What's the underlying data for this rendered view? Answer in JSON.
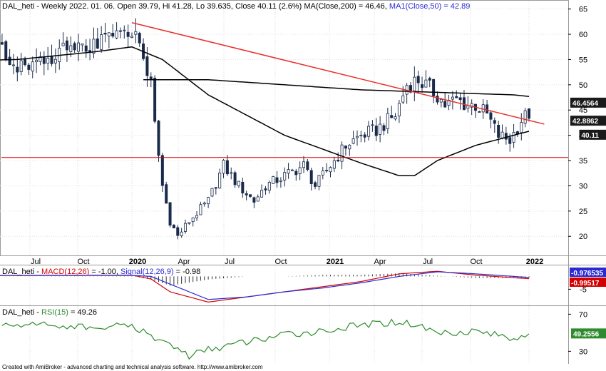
{
  "title": {
    "symbol": "DAL_heti - Weekly 2022. 01. 06.",
    "ohlc": " Open 39.79, Hi 41.28, Lo 39.635, Close 40.11 (2.6%)",
    "ma200": " MA(Close,200) = 46.46,",
    "ma50": " MA1(Close,50) = 42.89"
  },
  "macd_title": {
    "symbol": "DAL_heti - ",
    "macd": "MACD(12,26)",
    "macd_val": " = -1.00, ",
    "signal": "Signal(12,26,9)",
    "signal_val": " = -0.98"
  },
  "rsi_title": {
    "symbol": "DAL_heti - ",
    "rsi": "RSI(15)",
    "rsi_val": " = 49.26"
  },
  "footer": "Created with AmiBroker - advanced charting and technical analysis software. http://www.amibroker.com",
  "colors": {
    "trendline": "#e8302a",
    "support": "#d40000",
    "ma": "#000000",
    "macd": "#d40000",
    "signal": "#2a2ad4",
    "rsi": "#2e8b2e",
    "rsi_tag": "#2e8b2e",
    "macd_tag": "#2a2ad4",
    "signal_tag": "#d40000"
  },
  "chart_data": [
    {
      "type": "candlestick",
      "title": "DAL_heti - Weekly 2022. 01. 06.",
      "y_ticks": [
        20,
        25,
        30,
        35,
        40,
        45,
        50,
        55,
        60,
        65
      ],
      "ylim": [
        16.5,
        66.5
      ],
      "x_labels": [
        "Jul",
        "Oct",
        "2020",
        "Apr",
        "Jul",
        "Oct",
        "2021",
        "Apr",
        "Jul",
        "Oct",
        "2022"
      ],
      "bold_x_labels": [
        "2020",
        "2021",
        "2022"
      ],
      "value_tags": [
        {
          "label": "46.4564",
          "value": 46.46
        },
        {
          "label": "42.8862",
          "value": 42.89
        },
        {
          "label": "40.11",
          "value": 40.11
        }
      ],
      "support_level": 35.6,
      "trendline": {
        "from": {
          "week": 0,
          "value": 62.3
        },
        "to": {
          "week": 100,
          "value": 43.7
        }
      },
      "anchor_weeks": [
        -100,
        -90,
        -77,
        -70,
        -62,
        -52,
        -48,
        -43,
        -40,
        -37,
        -33,
        -30,
        -25,
        -20,
        -15,
        -10,
        -5,
        0,
        2,
        5,
        6,
        8,
        10,
        12,
        15,
        20,
        24,
        28,
        32,
        35,
        40,
        45,
        48,
        50,
        56,
        60,
        64,
        69,
        72,
        75,
        80,
        82,
        85,
        88,
        90,
        93,
        96,
        99,
        102,
        105,
        108,
        110,
        112,
        114,
        118,
        120
      ],
      "anchor_closes": [
        56,
        58,
        60,
        62,
        55,
        59,
        57,
        60,
        62,
        58,
        57,
        54,
        55,
        56,
        57,
        58,
        59,
        61,
        58,
        50,
        42,
        30,
        23,
        20,
        23,
        27,
        34,
        30,
        27,
        30,
        32,
        34,
        30,
        32,
        38,
        40,
        41,
        44,
        50,
        51,
        48,
        46,
        47,
        46,
        46,
        44,
        40,
        39,
        43,
        45,
        41,
        38,
        36,
        37,
        39,
        40.11
      ],
      "ma50_anchors": {
        "weeks": [
          -100,
          -60,
          -30,
          -10,
          0,
          8,
          20,
          40,
          60,
          70,
          74,
          80,
          90,
          100,
          110,
          115,
          120
        ],
        "values": [
          53,
          54.5,
          55,
          56.5,
          57.5,
          55,
          48,
          40,
          34.5,
          32,
          32,
          35,
          38,
          40,
          42,
          43,
          42.89
        ]
      },
      "ma200_anchors": {
        "weeks": [
          0,
          20,
          40,
          60,
          80,
          100,
          120
        ],
        "values": [
          51,
          51,
          50,
          49,
          48.5,
          48,
          46.46
        ]
      }
    },
    {
      "type": "line",
      "title": "MACD(12,26) / Signal(12,26,9)",
      "y_ticks": [
        -5
      ],
      "value_tags": [
        {
          "label": "-0.976535",
          "series": "Signal(12,26,9)"
        },
        {
          "label": "-0.99517",
          "series": "MACD(12,26)"
        }
      ],
      "macd_anchors": {
        "weeks": [
          -100,
          -50,
          0,
          5,
          10,
          20,
          30,
          40,
          50,
          60,
          70,
          80,
          90,
          100,
          110,
          120
        ],
        "values": [
          0.5,
          0.3,
          0.5,
          -1,
          -6,
          -10,
          -8,
          -6,
          -4,
          -2,
          1,
          2,
          0.5,
          -0.5,
          -1.5,
          -1.0
        ]
      },
      "signal_anchors": {
        "weeks": [
          -100,
          -50,
          0,
          5,
          10,
          20,
          30,
          40,
          50,
          60,
          70,
          80,
          90,
          100,
          110,
          120
        ],
        "values": [
          0.5,
          0.3,
          0.4,
          0,
          -3,
          -9,
          -8,
          -6,
          -4.5,
          -2.5,
          0,
          1.8,
          1,
          0,
          -1,
          -0.98
        ]
      }
    },
    {
      "type": "line",
      "title": "RSI(15)",
      "y_ticks": [
        30,
        70
      ],
      "value_tags": [
        {
          "label": "49.2556",
          "series": "RSI(15)"
        }
      ],
      "rsi_anchors": {
        "weeks": [
          -100,
          -85,
          -70,
          -55,
          -40,
          -25,
          -10,
          0,
          5,
          10,
          15,
          20,
          30,
          40,
          50,
          60,
          70,
          75,
          80,
          90,
          100,
          105,
          110,
          120
        ],
        "values": [
          50,
          55,
          52,
          65,
          55,
          60,
          55,
          58,
          45,
          38,
          25,
          32,
          40,
          48,
          52,
          58,
          62,
          58,
          50,
          52,
          44,
          52,
          46,
          49.26
        ]
      }
    }
  ]
}
